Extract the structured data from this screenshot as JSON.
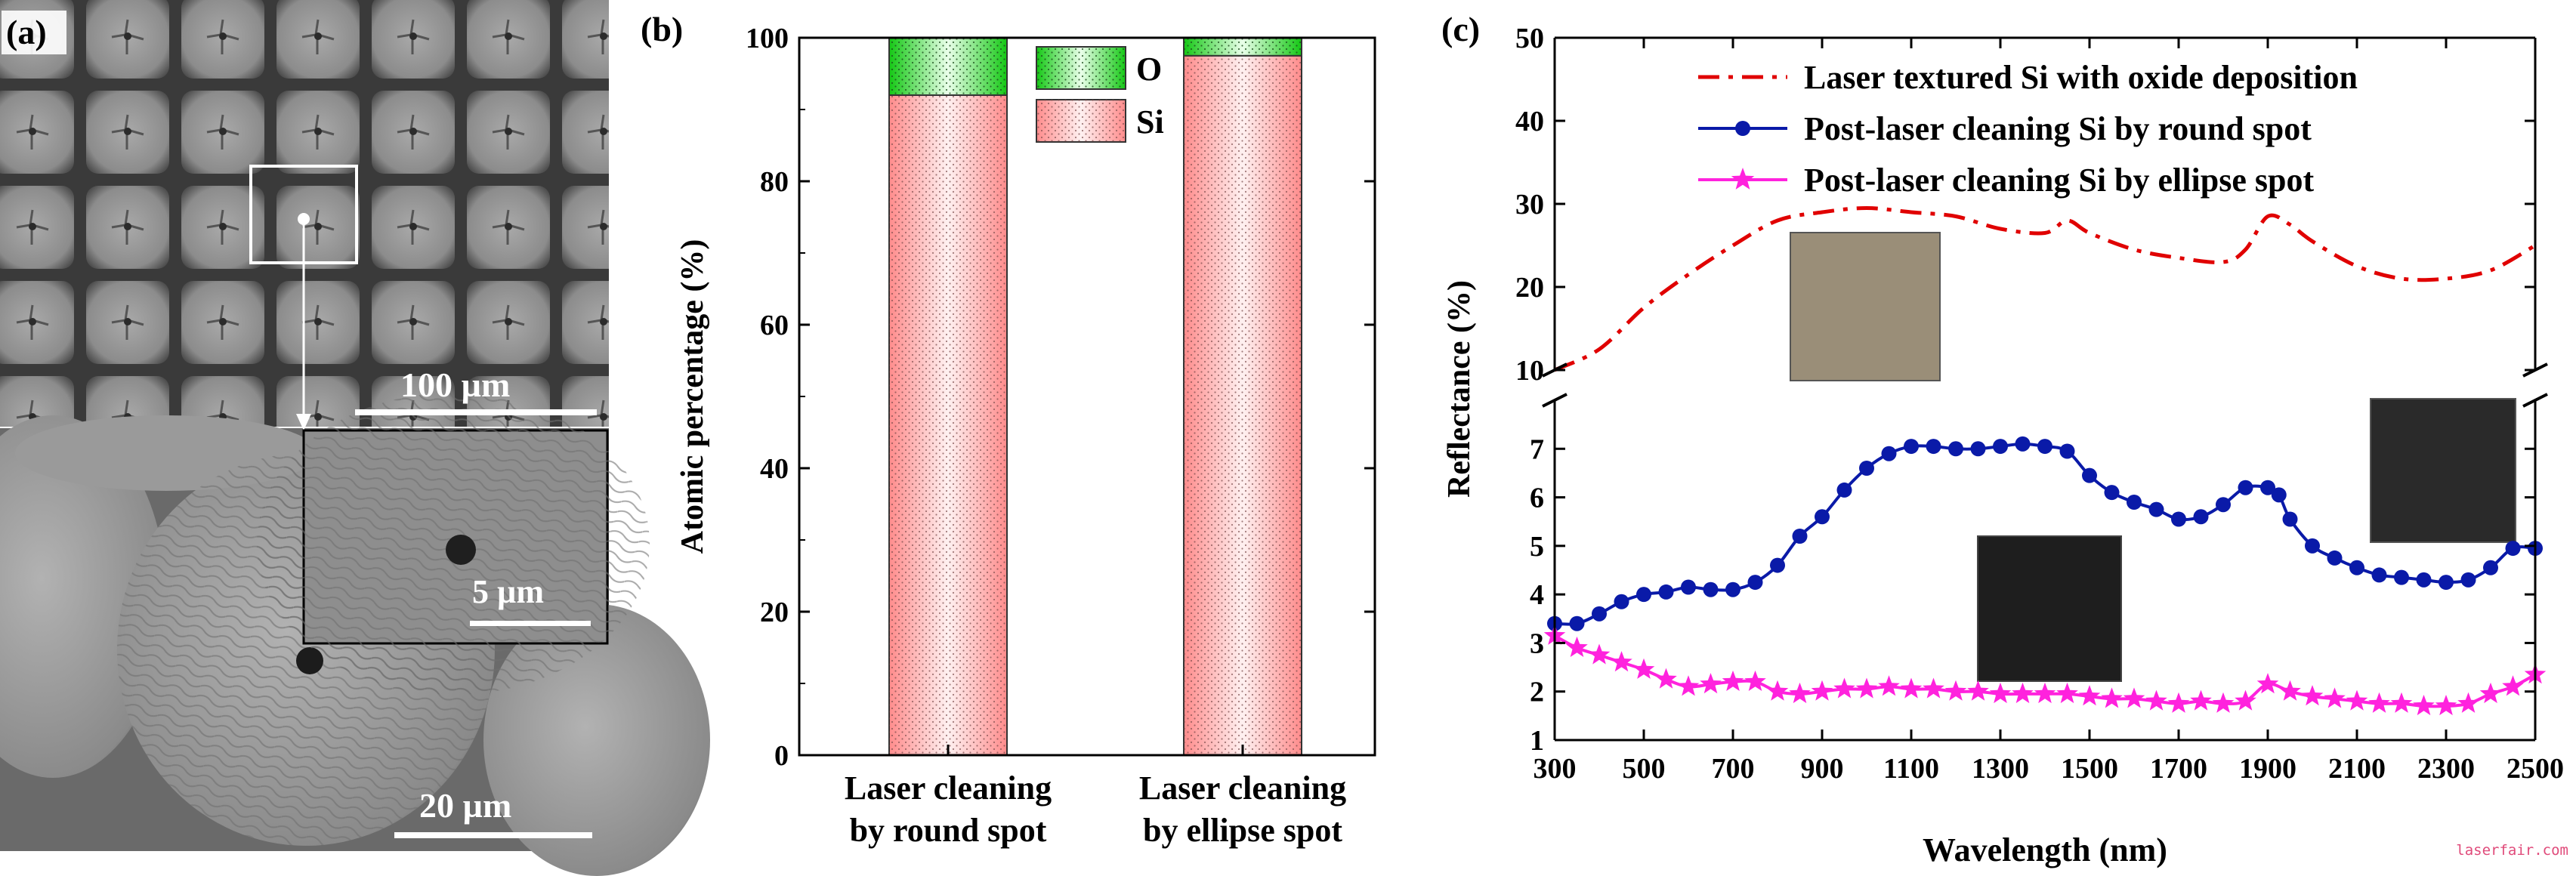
{
  "panels": {
    "a": {
      "label": "(a)",
      "scale_top": "100 µm",
      "scale_inset": "5 µm",
      "scale_bottom": "20 µm"
    },
    "b": {
      "label": "(b)"
    },
    "c": {
      "label": "(c)"
    }
  },
  "watermark": "laserfair.com",
  "colors": {
    "si_fill": "#ff9a9a",
    "o_fill": "#22cc22",
    "textured": "#e00000",
    "round": "#0a1aa8",
    "ellipse": "#ff22dd"
  },
  "chart_data": [
    {
      "type": "bar",
      "stacked": true,
      "ylabel": "Atomic percentage (%)",
      "ylim": [
        0,
        100
      ],
      "yticks": [
        "0",
        "20",
        "40",
        "60",
        "80",
        "100"
      ],
      "categories": [
        [
          "Laser cleaning",
          "by round spot"
        ],
        [
          "Laser cleaning",
          "by ellipse spot"
        ]
      ],
      "series": [
        {
          "name": "Si",
          "values": [
            92.0,
            97.5
          ]
        },
        {
          "name": "O",
          "values": [
            8.0,
            2.5
          ]
        }
      ],
      "legend": "top-right"
    },
    {
      "type": "line",
      "xlabel": "Wavelength (nm)",
      "ylabel": "Reflectance (%)",
      "xlim": [
        300,
        2500
      ],
      "xticks": [
        "300",
        "500",
        "700",
        "900",
        "1100",
        "1300",
        "1500",
        "1700",
        "1900",
        "2100",
        "2300",
        "2500"
      ],
      "y_broken_axis": {
        "upper": [
          10,
          50
        ],
        "lower": [
          1,
          8
        ]
      },
      "yticks_upper": [
        "10",
        "20",
        "30",
        "40",
        "50"
      ],
      "yticks_lower": [
        "1",
        "2",
        "3",
        "4",
        "5",
        "6",
        "7"
      ],
      "legend": "top-right",
      "series": [
        {
          "name": "Laser textured Si with oxide deposition",
          "x": [
            300,
            400,
            500,
            600,
            700,
            800,
            900,
            1000,
            1100,
            1200,
            1300,
            1400,
            1450,
            1500,
            1600,
            1700,
            1800,
            1850,
            1900,
            1950,
            2000,
            2100,
            2200,
            2300,
            2400,
            2500
          ],
          "y": [
            10,
            12.5,
            17.5,
            21.5,
            25,
            28,
            29,
            29.5,
            29,
            28.5,
            27,
            26.5,
            28,
            26.5,
            24.5,
            23.5,
            23,
            24.5,
            28.5,
            27.5,
            25.5,
            22.5,
            21,
            21,
            22,
            25
          ]
        },
        {
          "name": "Post-laser cleaning Si by round spot",
          "x": [
            300,
            350,
            400,
            450,
            500,
            550,
            600,
            650,
            700,
            750,
            800,
            850,
            900,
            950,
            1000,
            1050,
            1100,
            1150,
            1200,
            1250,
            1300,
            1350,
            1400,
            1450,
            1500,
            1550,
            1600,
            1650,
            1700,
            1750,
            1800,
            1850,
            1900,
            1925,
            1950,
            2000,
            2050,
            2100,
            2150,
            2200,
            2250,
            2300,
            2350,
            2400,
            2450,
            2500
          ],
          "y": [
            3.4,
            3.4,
            3.6,
            3.85,
            4.0,
            4.05,
            4.15,
            4.1,
            4.1,
            4.25,
            4.6,
            5.2,
            5.6,
            6.15,
            6.6,
            6.9,
            7.05,
            7.05,
            7.0,
            7.0,
            7.05,
            7.1,
            7.05,
            6.95,
            6.45,
            6.1,
            5.9,
            5.75,
            5.55,
            5.6,
            5.85,
            6.2,
            6.2,
            6.05,
            5.55,
            5.0,
            4.75,
            4.55,
            4.4,
            4.35,
            4.3,
            4.25,
            4.3,
            4.55,
            4.95,
            4.95
          ]
        },
        {
          "name": "Post-laser cleaning Si by ellipse spot",
          "x": [
            300,
            350,
            400,
            450,
            500,
            550,
            600,
            650,
            700,
            750,
            800,
            850,
            900,
            950,
            1000,
            1050,
            1100,
            1150,
            1200,
            1250,
            1300,
            1350,
            1400,
            1450,
            1500,
            1550,
            1600,
            1650,
            1700,
            1750,
            1800,
            1850,
            1900,
            1950,
            2000,
            2050,
            2100,
            2150,
            2200,
            2250,
            2300,
            2350,
            2400,
            2450,
            2500
          ],
          "y": [
            3.15,
            2.9,
            2.75,
            2.6,
            2.45,
            2.25,
            2.1,
            2.15,
            2.2,
            2.2,
            2.0,
            1.95,
            2.0,
            2.05,
            2.05,
            2.1,
            2.05,
            2.05,
            2.0,
            2.0,
            1.95,
            1.95,
            1.95,
            1.95,
            1.9,
            1.85,
            1.85,
            1.8,
            1.75,
            1.8,
            1.75,
            1.8,
            2.15,
            2.0,
            1.9,
            1.85,
            1.8,
            1.75,
            1.75,
            1.7,
            1.7,
            1.75,
            1.95,
            2.1,
            2.35
          ]
        }
      ]
    }
  ]
}
